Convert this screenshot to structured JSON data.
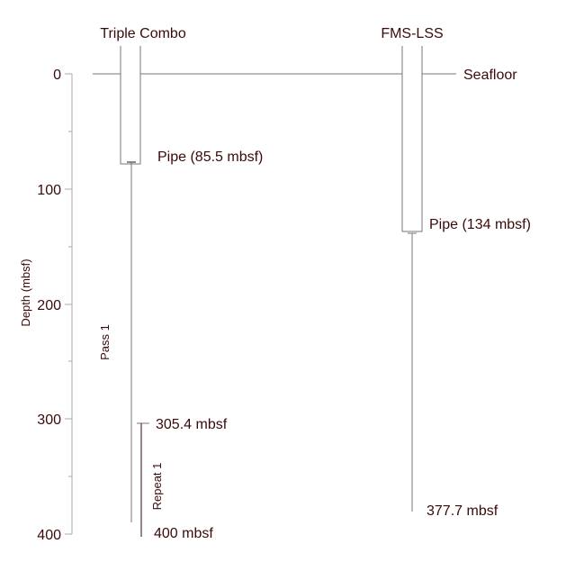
{
  "axis": {
    "label": "Depth (mbsf)",
    "ticks": [
      "0",
      "100",
      "200",
      "300",
      "400"
    ]
  },
  "seafloor_label": "Seafloor",
  "runs": [
    {
      "title": "Triple Combo",
      "pipe_label": "Pipe (85.5 mbsf)",
      "passes": [
        {
          "label": "Pass 1"
        },
        {
          "label": "Repeat 1",
          "top_label": "305.4 mbsf",
          "bottom_label": "400 mbsf"
        }
      ]
    },
    {
      "title": "FMS-LSS",
      "pipe_label": "Pipe (134 mbsf)",
      "bottom_label": "377.7 mbsf"
    }
  ],
  "colors": {
    "text": "#3a0a0a",
    "lines": "#777777",
    "axis": "#aaaaaa"
  }
}
